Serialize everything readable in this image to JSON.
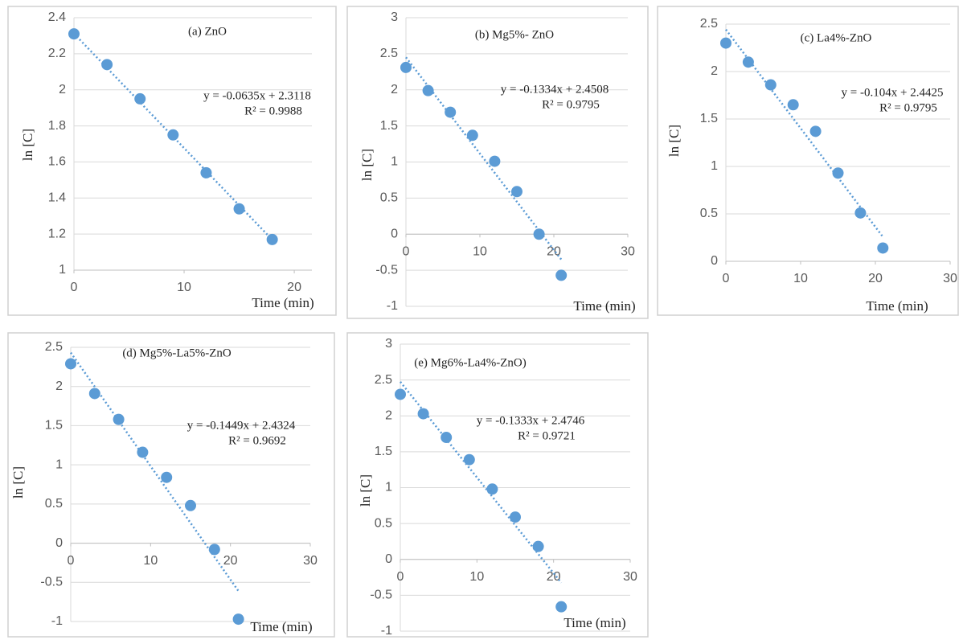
{
  "chart_data": [
    {
      "type": "scatter",
      "title": "(a) ZnO",
      "x_label": "Time (min)",
      "y_label": "ln [C]",
      "annotations": [
        "y = -0.0635x + 2.3118",
        "R² = 0.9988"
      ],
      "x": [
        0,
        3,
        6,
        9,
        12,
        15,
        18
      ],
      "y": [
        2.31,
        2.14,
        1.95,
        1.75,
        1.54,
        1.34,
        1.17
      ],
      "trendline": {
        "slope": -0.0635,
        "intercept": 2.3118
      },
      "xlim": [
        0,
        21.6
      ],
      "xticks": [
        0,
        10,
        20
      ],
      "ylim": [
        1,
        2.4
      ],
      "yticks": [
        1,
        1.2,
        1.4,
        1.6,
        1.8,
        2,
        2.2,
        2.4
      ],
      "color": "#5b9bd5",
      "grid": true
    },
    {
      "type": "scatter",
      "title": "(b) Mg5%- ZnO",
      "x_label": "Time  (min)",
      "y_label": "ln [C]",
      "annotations": [
        "y = -0.1334x  + 2.4508",
        "R² = 0.9795"
      ],
      "x": [
        0,
        3,
        6,
        9,
        12,
        15,
        18,
        21
      ],
      "y": [
        2.31,
        1.99,
        1.69,
        1.37,
        1.01,
        0.59,
        0.0,
        -0.57
      ],
      "trendline": {
        "slope": -0.1334,
        "intercept": 2.4508
      },
      "xlim": [
        0,
        30
      ],
      "xticks": [
        0,
        10,
        20,
        30
      ],
      "ylim": [
        -1,
        3
      ],
      "yticks": [
        -1,
        -0.5,
        0,
        0.5,
        1,
        1.5,
        2,
        2.5,
        3
      ],
      "color": "#5b9bd5",
      "grid": true
    },
    {
      "type": "scatter",
      "title": "(c) La4%-ZnO",
      "x_label": "Time (min)",
      "y_label": "ln [C]",
      "annotations": [
        "y = -0.104x + 2.4425",
        "R² = 0.9795"
      ],
      "x": [
        0,
        3,
        6,
        9,
        12,
        15,
        18,
        21
      ],
      "y": [
        2.3,
        2.1,
        1.86,
        1.65,
        1.37,
        0.93,
        0.51,
        0.14
      ],
      "trendline": {
        "slope": -0.104,
        "intercept": 2.4425
      },
      "xlim": [
        0,
        30
      ],
      "xticks": [
        0,
        10,
        20,
        30
      ],
      "ylim": [
        0,
        2.5
      ],
      "yticks": [
        0,
        0.5,
        1,
        1.5,
        2,
        2.5
      ],
      "color": "#5b9bd5",
      "grid": true
    },
    {
      "type": "scatter",
      "title": "(d) Mg5%-La5%-ZnO",
      "x_label": "Time (min)",
      "y_label": "ln [C]",
      "annotations": [
        "y = -0.1449x  + 2.4324",
        "R² = 0.9692"
      ],
      "x": [
        0,
        3,
        6,
        9,
        12,
        15,
        18,
        21
      ],
      "y": [
        2.29,
        1.91,
        1.58,
        1.16,
        0.84,
        0.48,
        -0.08,
        -0.97
      ],
      "trendline": {
        "slope": -0.1449,
        "intercept": 2.4324
      },
      "xlim": [
        0,
        30
      ],
      "xticks": [
        0,
        10,
        20,
        30
      ],
      "ylim": [
        -1,
        2.5
      ],
      "yticks": [
        -1,
        -0.5,
        0,
        0.5,
        1,
        1.5,
        2,
        2.5
      ],
      "color": "#5b9bd5",
      "grid": true
    },
    {
      "type": "scatter",
      "title": "(e) Mg6%-La4%-ZnO)",
      "x_label": "Time (min)",
      "y_label": "ln [C]",
      "annotations": [
        "y = -0.1333x  + 2.4746",
        "R² = 0.9721"
      ],
      "x": [
        0,
        3,
        6,
        9,
        12,
        15,
        18,
        21
      ],
      "y": [
        2.3,
        2.03,
        1.7,
        1.39,
        0.98,
        0.59,
        0.18,
        -0.66
      ],
      "trendline": {
        "slope": -0.1333,
        "intercept": 2.4746
      },
      "xlim": [
        0,
        30
      ],
      "xticks": [
        0,
        10,
        20,
        30
      ],
      "ylim": [
        -1,
        3
      ],
      "yticks": [
        -1,
        -0.5,
        0,
        0.5,
        1,
        1.5,
        2,
        2.5,
        3
      ],
      "color": "#5b9bd5",
      "grid": true
    }
  ]
}
